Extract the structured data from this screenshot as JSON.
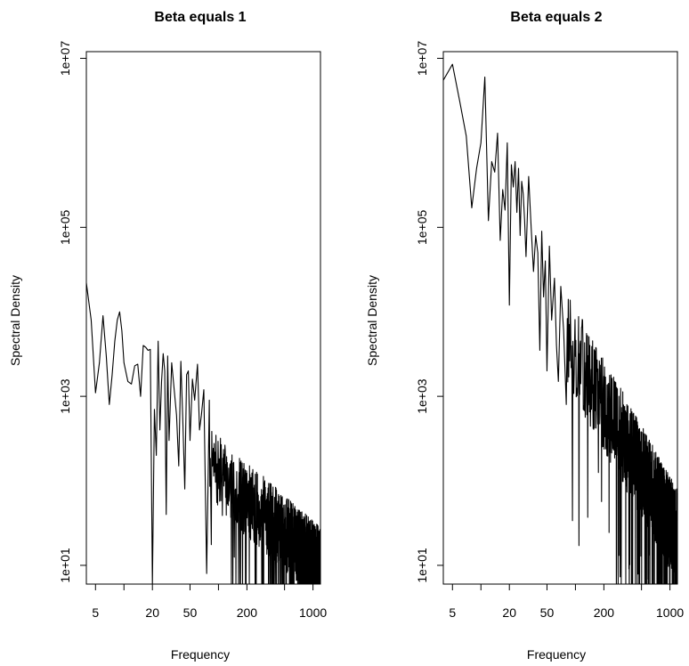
{
  "chart_data": [
    {
      "type": "line",
      "title": "Beta equals 1",
      "xlabel": "Frequency",
      "ylabel": "Spectral Density",
      "x_scale": "log",
      "y_scale": "log",
      "xlim": [
        4,
        1200
      ],
      "ylim": [
        6,
        12000000
      ],
      "x_ticks": [
        {
          "value": 5,
          "label": "5"
        },
        {
          "value": 10,
          "label": ""
        },
        {
          "value": 20,
          "label": "20"
        },
        {
          "value": 50,
          "label": "50"
        },
        {
          "value": 100,
          "label": ""
        },
        {
          "value": 200,
          "label": "200"
        },
        {
          "value": 500,
          "label": ""
        },
        {
          "value": 1000,
          "label": "1000"
        }
      ],
      "y_ticks": [
        {
          "value": 10,
          "label": "1e+01"
        },
        {
          "value": 1000,
          "label": "1e+03"
        },
        {
          "value": 100000,
          "label": "1e+05"
        },
        {
          "value": 10000000,
          "label": "1e+07"
        }
      ],
      "grid": false,
      "legend": "none",
      "trend": {
        "start_value": 3000,
        "slope": -1,
        "scatter_decades": 0.45,
        "seed": 7
      },
      "x": [
        4,
        4.5,
        5,
        5.5,
        6,
        6.5,
        7,
        7.5,
        8,
        8.5,
        9,
        9.5,
        10,
        11,
        12,
        13,
        14,
        15,
        16,
        17,
        18,
        19,
        20,
        21,
        22,
        23,
        24,
        25,
        26,
        27,
        28,
        29,
        30,
        32,
        34,
        36,
        38,
        40,
        42,
        44,
        46,
        48,
        50,
        53,
        56,
        60,
        63,
        66,
        70,
        75,
        80
      ],
      "values": [
        22000,
        8000,
        1100,
        2500,
        9000,
        3000,
        800,
        1800,
        4500,
        8000,
        10000,
        6000,
        2500,
        1500,
        1400,
        2300,
        2400,
        1000,
        4000,
        3800,
        3500,
        3600,
        5,
        700,
        200,
        4500,
        400,
        1500,
        3200,
        2000,
        40,
        3000,
        300,
        2500,
        1200,
        600,
        150,
        2600,
        500,
        80,
        1800,
        2000,
        300,
        1600,
        900,
        2400,
        400,
        600,
        1200,
        8,
        900
      ]
    },
    {
      "type": "line",
      "title": "Beta equals 2",
      "xlabel": "Frequency",
      "ylabel": "Spectral Density",
      "x_scale": "log",
      "y_scale": "log",
      "xlim": [
        4,
        1200
      ],
      "ylim": [
        6,
        12000000
      ],
      "x_ticks": [
        {
          "value": 5,
          "label": "5"
        },
        {
          "value": 10,
          "label": ""
        },
        {
          "value": 20,
          "label": "20"
        },
        {
          "value": 50,
          "label": "50"
        },
        {
          "value": 100,
          "label": ""
        },
        {
          "value": 200,
          "label": "200"
        },
        {
          "value": 500,
          "label": ""
        },
        {
          "value": 1000,
          "label": "1000"
        }
      ],
      "y_ticks": [
        {
          "value": 10,
          "label": "1e+01"
        },
        {
          "value": 1000,
          "label": "1e+03"
        },
        {
          "value": 100000,
          "label": "1e+05"
        },
        {
          "value": 10000000,
          "label": "1e+07"
        }
      ],
      "grid": false,
      "legend": "none",
      "trend": {
        "start_value": 2000000,
        "slope": -2,
        "scatter_decades": 0.55,
        "seed": 13
      },
      "x": [
        4,
        5,
        6,
        7,
        8,
        9,
        10,
        11,
        12,
        13,
        14,
        15,
        16,
        17,
        18,
        19,
        20,
        21,
        22,
        23,
        24,
        25,
        26,
        27,
        28,
        29,
        30,
        32,
        34,
        36,
        38,
        40,
        42,
        44,
        46,
        48,
        50,
        53,
        56,
        60,
        63,
        66,
        70,
        75,
        80
      ],
      "values": [
        5500000,
        8500000,
        3000000,
        1200000,
        170000,
        500000,
        1000000,
        6000000,
        120000,
        600000,
        450000,
        1300000,
        70000,
        280000,
        160000,
        1000000,
        12000,
        550000,
        300000,
        600000,
        150000,
        500000,
        80000,
        350000,
        250000,
        120000,
        45000,
        400000,
        100000,
        30000,
        80000,
        50000,
        3500,
        90000,
        15000,
        40000,
        2000,
        60000,
        8000,
        25000,
        4000,
        1500,
        20000,
        6000,
        800
      ]
    }
  ]
}
